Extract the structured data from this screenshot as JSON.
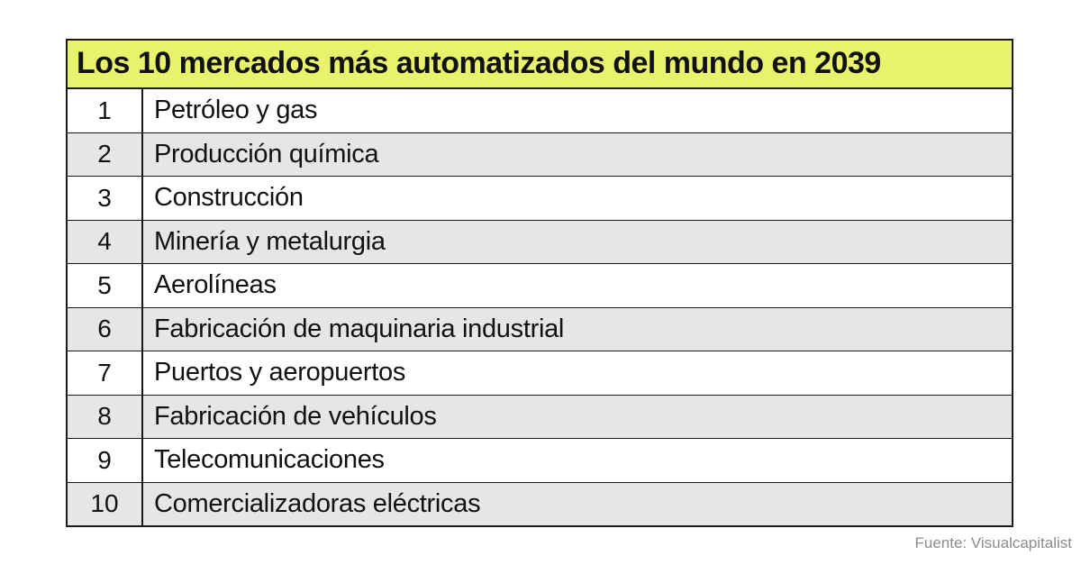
{
  "chart_data": {
    "type": "table",
    "title": "Los 10 mercados más automatizados del mundo en 2039",
    "columns": [
      "rank",
      "market"
    ],
    "rows": [
      {
        "rank": "1",
        "label": "Petróleo y gas"
      },
      {
        "rank": "2",
        "label": "Producción química"
      },
      {
        "rank": "3",
        "label": "Construcción"
      },
      {
        "rank": "4",
        "label": "Minería y metalurgia"
      },
      {
        "rank": "5",
        "label": "Aerolíneas"
      },
      {
        "rank": "6",
        "label": "Fabricación de maquinaria industrial"
      },
      {
        "rank": "7",
        "label": "Puertos y aeropuertos"
      },
      {
        "rank": "8",
        "label": "Fabricación de vehículos"
      },
      {
        "rank": "9",
        "label": "Telecomunicaciones"
      },
      {
        "rank": "10",
        "label": "Comercializadoras eléctricas"
      }
    ],
    "source": "Fuente: Visualcapitalist",
    "layout": {
      "zebra_striping": true,
      "alt_rows": "even"
    }
  },
  "title": "Los 10 mercados más automatizados del mundo en 2039",
  "rows": [
    {
      "rank": "1",
      "label": "Petróleo y gas"
    },
    {
      "rank": "2",
      "label": "Producción química"
    },
    {
      "rank": "3",
      "label": "Construcción"
    },
    {
      "rank": "4",
      "label": "Minería y metalurgia"
    },
    {
      "rank": "5",
      "label": "Aerolíneas"
    },
    {
      "rank": "6",
      "label": "Fabricación de maquinaria industrial"
    },
    {
      "rank": "7",
      "label": "Puertos y aeropuertos"
    },
    {
      "rank": "8",
      "label": "Fabricación de vehículos"
    },
    {
      "rank": "9",
      "label": "Telecomunicaciones"
    },
    {
      "rank": "10",
      "label": "Comercializadoras eléctricas"
    }
  ],
  "source_label": "Fuente: Visualcapitalist",
  "colors": {
    "header_bg": "#e8f26d",
    "row_alt_bg": "#e6e6e6",
    "border": "#1a1a1a",
    "source_text": "#8c8c8c"
  }
}
